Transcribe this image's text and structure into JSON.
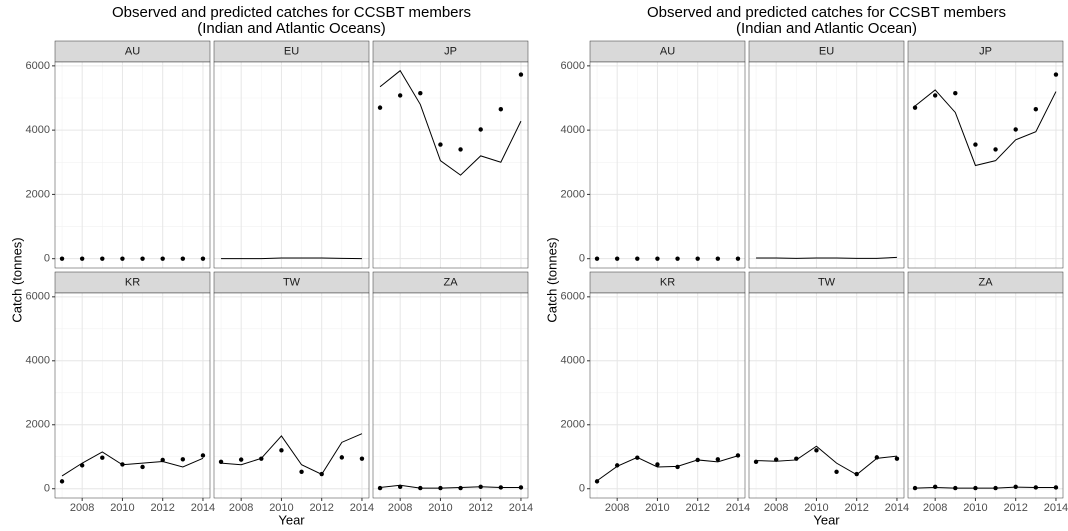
{
  "chart_data": [
    {
      "type": "line",
      "title": "Observed and predicted catches for CCSBT members",
      "subtitle": "(Indian and Atlantic Oceans)",
      "xlabel": "Year",
      "ylabel": "Catch (tonnes)",
      "x": [
        2007,
        2008,
        2009,
        2010,
        2011,
        2012,
        2013,
        2014
      ],
      "xlim": [
        2006.65,
        2014.35
      ],
      "ylim": [
        -290,
        6120
      ],
      "xticks": [
        2008,
        2010,
        2012,
        2014
      ],
      "yticks": [
        0,
        2000,
        4000,
        6000
      ],
      "xminor": [
        2007,
        2009,
        2011,
        2013
      ],
      "yminor": [
        1000,
        3000,
        5000
      ],
      "grid": true,
      "color": "#000000",
      "panels": [
        {
          "label": "AU",
          "points": [
            0,
            0,
            0,
            0,
            0,
            0,
            0,
            0
          ]
        },
        {
          "label": "EU",
          "line": [
            0,
            0,
            0,
            20,
            20,
            20,
            10,
            0
          ]
        },
        {
          "label": "JP",
          "points": [
            4700,
            5080,
            5150,
            3550,
            3400,
            4020,
            4650,
            5730
          ],
          "line": [
            5350,
            5850,
            4800,
            3050,
            2600,
            3200,
            3000,
            4280
          ]
        },
        {
          "label": "KR",
          "points": [
            230,
            730,
            970,
            760,
            680,
            900,
            920,
            1040
          ],
          "line": [
            400,
            800,
            1150,
            750,
            800,
            850,
            680,
            950
          ]
        },
        {
          "label": "TW",
          "points": [
            840,
            910,
            940,
            1200,
            530,
            460,
            980,
            940
          ],
          "line": [
            800,
            750,
            950,
            1650,
            750,
            450,
            1450,
            1720
          ]
        },
        {
          "label": "ZA",
          "points": [
            20,
            60,
            20,
            20,
            20,
            60,
            40,
            40
          ],
          "line": [
            40,
            110,
            20,
            20,
            40,
            60,
            40,
            40
          ]
        }
      ]
    },
    {
      "type": "line",
      "title": "Observed and predicted catches for CCSBT members",
      "subtitle": "(Indian and Atlantic Ocean)",
      "xlabel": "Year",
      "ylabel": "Catch (tonnes)",
      "x": [
        2007,
        2008,
        2009,
        2010,
        2011,
        2012,
        2013,
        2014
      ],
      "xlim": [
        2006.65,
        2014.35
      ],
      "ylim": [
        -290,
        6120
      ],
      "xticks": [
        2008,
        2010,
        2012,
        2014
      ],
      "yticks": [
        0,
        2000,
        4000,
        6000
      ],
      "xminor": [
        2007,
        2009,
        2011,
        2013
      ],
      "yminor": [
        1000,
        3000,
        5000
      ],
      "grid": true,
      "color": "#000000",
      "panels": [
        {
          "label": "AU",
          "points": [
            0,
            0,
            0,
            0,
            0,
            0,
            0,
            0
          ]
        },
        {
          "label": "EU",
          "line": [
            20,
            20,
            10,
            20,
            20,
            10,
            10,
            40
          ]
        },
        {
          "label": "JP",
          "points": [
            4700,
            5080,
            5150,
            3550,
            3400,
            4020,
            4650,
            5730
          ],
          "line": [
            4750,
            5250,
            4550,
            2900,
            3050,
            3700,
            3950,
            5200
          ]
        },
        {
          "label": "KR",
          "points": [
            230,
            730,
            970,
            760,
            680,
            900,
            920,
            1040
          ],
          "line": [
            250,
            700,
            980,
            680,
            700,
            900,
            840,
            1030
          ]
        },
        {
          "label": "TW",
          "points": [
            840,
            910,
            940,
            1200,
            530,
            460,
            980,
            940
          ],
          "line": [
            880,
            860,
            900,
            1330,
            800,
            440,
            950,
            1020
          ]
        },
        {
          "label": "ZA",
          "points": [
            20,
            60,
            20,
            20,
            20,
            60,
            40,
            40
          ],
          "line": [
            20,
            40,
            20,
            20,
            20,
            50,
            40,
            40
          ]
        }
      ]
    }
  ]
}
